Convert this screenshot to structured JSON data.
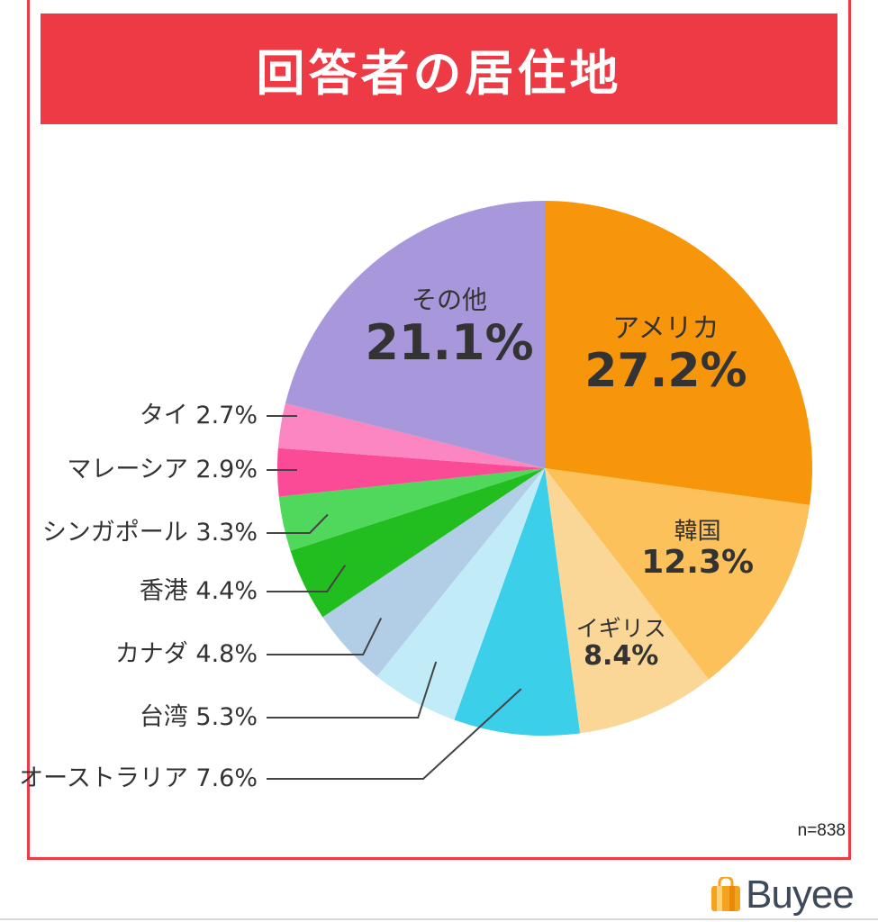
{
  "title": "回答者の居住地",
  "sample_size": "n=838",
  "logo": {
    "text": "Buyee",
    "icon": "shopping-bag-icon"
  },
  "colors": {
    "accent": "#ee3a44"
  },
  "chart_data": {
    "type": "pie",
    "title": "回答者の居住地",
    "unit": "%",
    "slices": [
      {
        "label": "アメリカ",
        "value": 27.2,
        "display": "27.2%",
        "color": "#f7960b"
      },
      {
        "label": "韓国",
        "value": 12.3,
        "display": "12.3%",
        "color": "#fcc15a"
      },
      {
        "label": "イギリス",
        "value": 8.4,
        "display": "8.4%",
        "color": "#fbd797"
      },
      {
        "label": "オーストラリア",
        "value": 7.6,
        "display": "7.6%",
        "color": "#3ccfea"
      },
      {
        "label": "台湾",
        "value": 5.3,
        "display": "5.3%",
        "color": "#c1ebf6"
      },
      {
        "label": "カナダ",
        "value": 4.8,
        "display": "4.8%",
        "color": "#b2cde6"
      },
      {
        "label": "香港",
        "value": 4.4,
        "display": "4.4%",
        "color": "#22bd1e"
      },
      {
        "label": "シンガポール",
        "value": 3.3,
        "display": "3.3%",
        "color": "#4fd85b"
      },
      {
        "label": "マレーシア",
        "value": 2.9,
        "display": "2.9%",
        "color": "#fb4a96"
      },
      {
        "label": "タイ",
        "value": 2.7,
        "display": "2.7%",
        "color": "#fb86c2"
      },
      {
        "label": "その他",
        "value": 21.1,
        "display": "21.1%",
        "color": "#a897da"
      }
    ]
  }
}
